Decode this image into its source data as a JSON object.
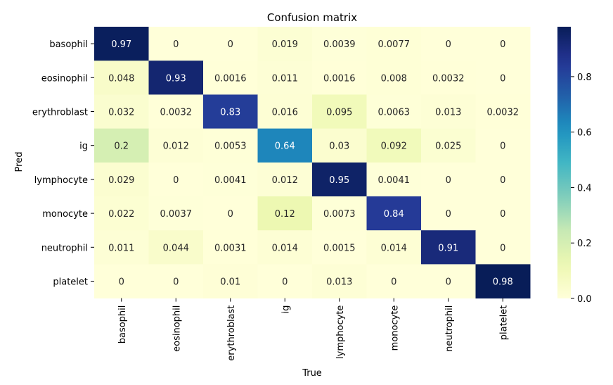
{
  "chart_data": {
    "type": "heatmap",
    "title": "Confusion matrix",
    "xlabel": "True",
    "ylabel": "Pred",
    "x_categories": [
      "basophil",
      "eosinophil",
      "erythroblast",
      "ig",
      "lymphocyte",
      "monocyte",
      "neutrophil",
      "platelet"
    ],
    "y_categories": [
      "basophil",
      "eosinophil",
      "erythroblast",
      "ig",
      "lymphocyte",
      "monocyte",
      "neutrophil",
      "platelet"
    ],
    "values": [
      [
        0.97,
        0,
        0,
        0.019,
        0.0039,
        0.0077,
        0,
        0
      ],
      [
        0.048,
        0.93,
        0.0016,
        0.011,
        0.0016,
        0.008,
        0.0032,
        0
      ],
      [
        0.032,
        0.0032,
        0.83,
        0.016,
        0.095,
        0.0063,
        0.013,
        0.0032
      ],
      [
        0.2,
        0.012,
        0.0053,
        0.64,
        0.03,
        0.092,
        0.025,
        0
      ],
      [
        0.029,
        0,
        0.0041,
        0.012,
        0.95,
        0.0041,
        0,
        0
      ],
      [
        0.022,
        0.0037,
        0,
        0.12,
        0.0073,
        0.84,
        0,
        0
      ],
      [
        0.011,
        0.044,
        0.0031,
        0.014,
        0.0015,
        0.014,
        0.91,
        0
      ],
      [
        0,
        0,
        0.01,
        0,
        0.013,
        0,
        0,
        0.98
      ]
    ],
    "labels": [
      [
        "0.97",
        "0",
        "0",
        "0.019",
        "0.0039",
        "0.0077",
        "0",
        "0"
      ],
      [
        "0.048",
        "0.93",
        "0.0016",
        "0.011",
        "0.0016",
        "0.008",
        "0.0032",
        "0"
      ],
      [
        "0.032",
        "0.0032",
        "0.83",
        "0.016",
        "0.095",
        "0.0063",
        "0.013",
        "0.0032"
      ],
      [
        "0.2",
        "0.012",
        "0.0053",
        "0.64",
        "0.03",
        "0.092",
        "0.025",
        "0"
      ],
      [
        "0.029",
        "0",
        "0.0041",
        "0.012",
        "0.95",
        "0.0041",
        "0",
        "0"
      ],
      [
        "0.022",
        "0.0037",
        "0",
        "0.12",
        "0.0073",
        "0.84",
        "0",
        "0"
      ],
      [
        "0.011",
        "0.044",
        "0.0031",
        "0.014",
        "0.0015",
        "0.014",
        "0.91",
        "0"
      ],
      [
        "0",
        "0",
        "0.01",
        "0",
        "0.013",
        "0",
        "0",
        "0.98"
      ]
    ],
    "colormap": "YlGnBu",
    "vmin": 0,
    "vmax": 0.98,
    "colorbar_ticks": [
      "0.0",
      "0.2",
      "0.4",
      "0.6",
      "0.8"
    ],
    "colorbar_tick_values": [
      0,
      0.2,
      0.4,
      0.6,
      0.8
    ],
    "grid": false
  }
}
